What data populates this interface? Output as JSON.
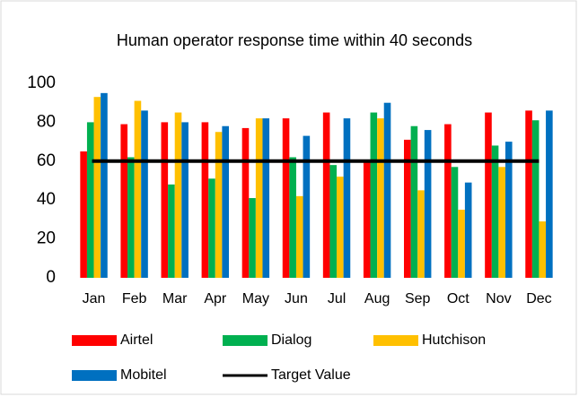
{
  "chart_data": {
    "type": "bar",
    "title": "Human operator response time within 40 seconds",
    "categories": [
      "Jan",
      "Feb",
      "Mar",
      "Apr",
      "May",
      "Jun",
      "Jul",
      "Aug",
      "Sep",
      "Oct",
      "Nov",
      "Dec"
    ],
    "series": [
      {
        "name": "Airtel",
        "color": "#ff0000",
        "values": [
          65,
          79,
          80,
          80,
          77,
          82,
          85,
          60,
          71,
          79,
          85,
          86
        ]
      },
      {
        "name": "Dialog",
        "color": "#00b050",
        "values": [
          80,
          62,
          48,
          51,
          41,
          62,
          58,
          85,
          78,
          57,
          68,
          81
        ]
      },
      {
        "name": "Hutchison",
        "color": "#ffc000",
        "values": [
          93,
          91,
          85,
          75,
          82,
          42,
          52,
          82,
          45,
          35,
          57,
          29
        ]
      },
      {
        "name": "Mobitel",
        "color": "#0070c0",
        "values": [
          95,
          86,
          80,
          78,
          82,
          73,
          82,
          90,
          76,
          49,
          70,
          86
        ]
      },
      {
        "name": "Target Value",
        "color": "#000000",
        "type": "line",
        "values": [
          60,
          60,
          60,
          60,
          60,
          60,
          60,
          60,
          60,
          60,
          60,
          60
        ]
      }
    ],
    "ylim": [
      0,
      100
    ],
    "yticks": [
      0,
      20,
      40,
      60,
      80,
      100
    ],
    "grid": false,
    "legend": "bottom"
  }
}
